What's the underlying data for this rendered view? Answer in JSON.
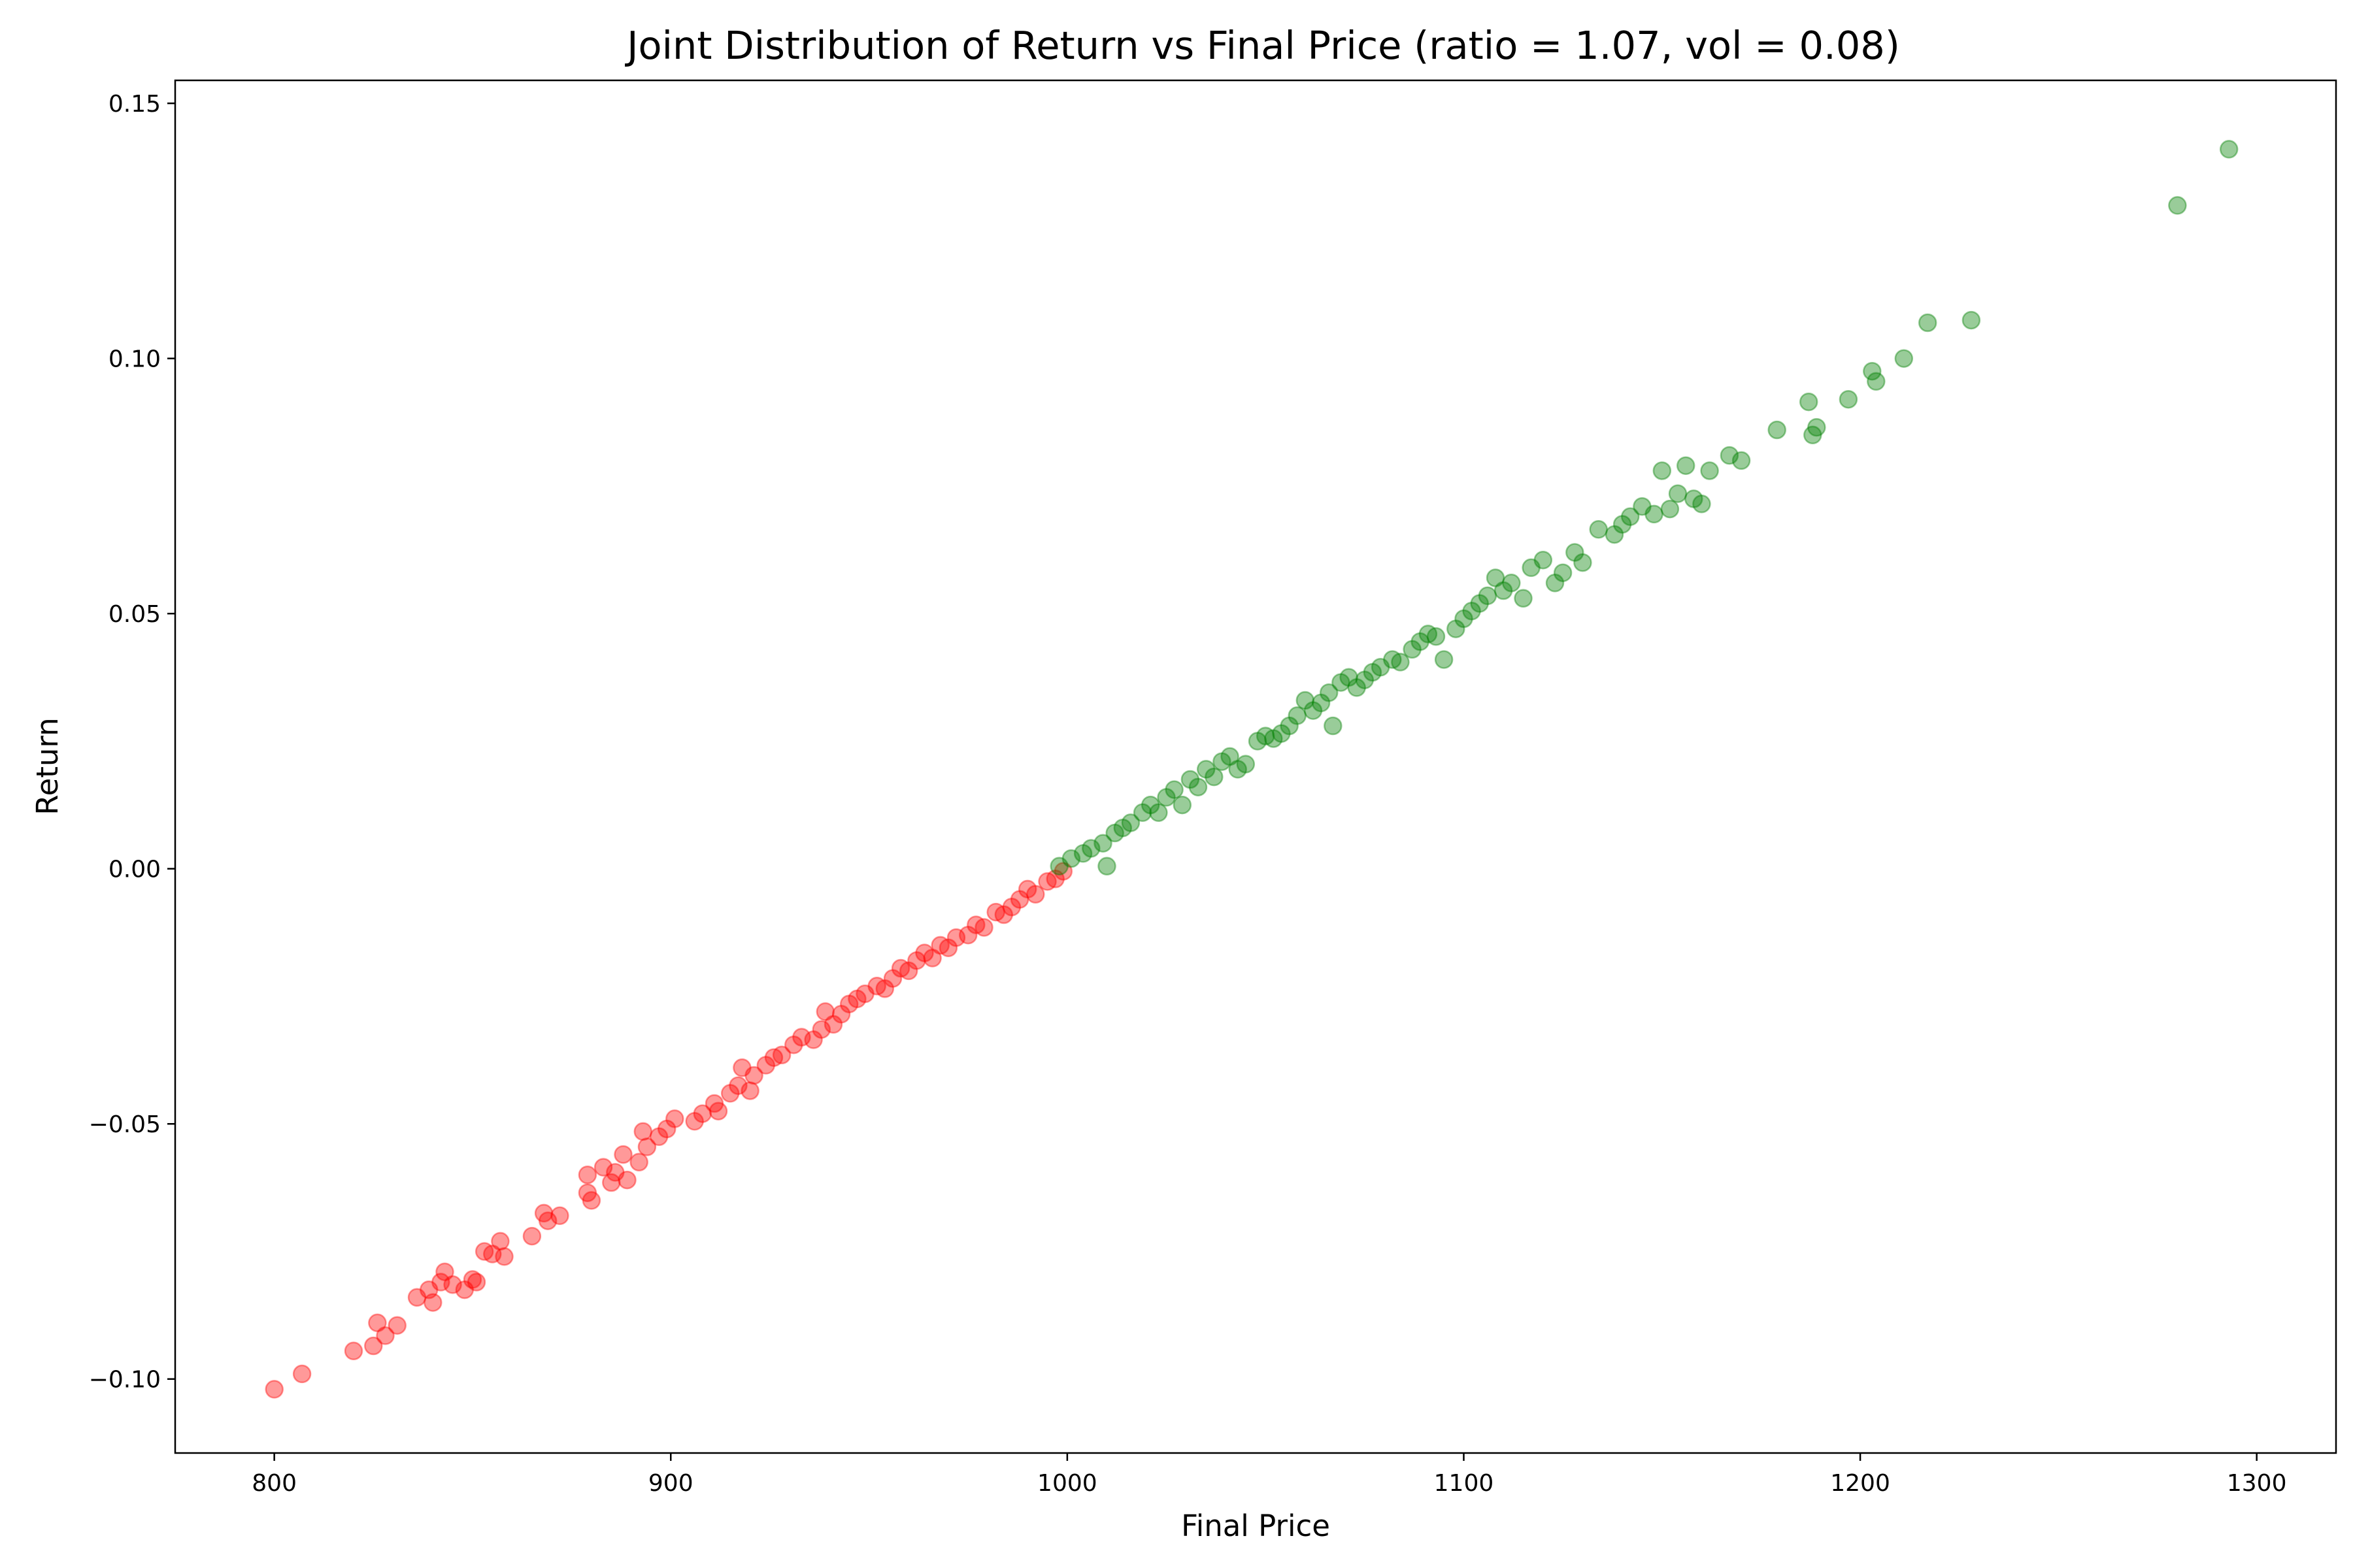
{
  "chart_data": {
    "type": "scatter",
    "title": "Joint Distribution of Return vs Final Price (ratio = 1.07, vol = 0.08)",
    "xlabel": "Final Price",
    "ylabel": "Return",
    "xlim": [
      775,
      1320
    ],
    "ylim": [
      -0.1145,
      0.1545
    ],
    "xticks": [
      800,
      900,
      1000,
      1100,
      1200,
      1300
    ],
    "xtick_labels": [
      "800",
      "900",
      "1000",
      "1100",
      "1200",
      "1300"
    ],
    "yticks": [
      -0.1,
      -0.05,
      0.0,
      0.05,
      0.1,
      0.15
    ],
    "ytick_labels": [
      "−0.10",
      "−0.05",
      "0.00",
      "0.05",
      "0.10",
      "0.15"
    ],
    "grid": false,
    "legend": "none",
    "marker_alpha": 0.4,
    "series": [
      {
        "color": "#ff0000",
        "x": [
          800,
          807,
          820,
          825,
          826,
          828,
          831,
          836,
          839,
          840,
          842,
          843,
          845,
          848,
          850,
          851,
          853,
          855,
          857,
          858,
          865,
          868,
          869,
          872,
          879,
          879,
          880,
          883,
          885,
          886,
          888,
          889,
          892,
          893,
          894,
          897,
          899,
          901,
          906,
          908,
          911,
          912,
          915,
          917,
          918,
          920,
          921,
          924,
          926,
          928,
          931,
          933,
          936,
          938,
          939,
          941,
          943,
          945,
          947,
          949,
          952,
          954,
          956,
          958,
          960,
          962,
          964,
          966,
          968,
          970,
          972,
          975,
          977,
          979,
          982,
          984,
          986,
          988,
          990,
          992,
          995,
          997,
          999
        ],
        "y": [
          -0.102,
          -0.099,
          -0.0945,
          -0.0935,
          -0.089,
          -0.0915,
          -0.0895,
          -0.084,
          -0.0825,
          -0.085,
          -0.081,
          -0.079,
          -0.0815,
          -0.0825,
          -0.0805,
          -0.081,
          -0.075,
          -0.0755,
          -0.073,
          -0.076,
          -0.072,
          -0.0675,
          -0.069,
          -0.068,
          -0.0635,
          -0.06,
          -0.065,
          -0.0585,
          -0.0615,
          -0.0595,
          -0.056,
          -0.061,
          -0.0575,
          -0.0515,
          -0.0545,
          -0.0525,
          -0.051,
          -0.049,
          -0.0495,
          -0.048,
          -0.046,
          -0.0475,
          -0.044,
          -0.0425,
          -0.039,
          -0.0435,
          -0.0405,
          -0.0385,
          -0.037,
          -0.0365,
          -0.0345,
          -0.033,
          -0.0335,
          -0.0315,
          -0.028,
          -0.0305,
          -0.0285,
          -0.0265,
          -0.0255,
          -0.0245,
          -0.023,
          -0.0235,
          -0.0215,
          -0.0195,
          -0.02,
          -0.018,
          -0.0165,
          -0.0175,
          -0.015,
          -0.0155,
          -0.0135,
          -0.013,
          -0.011,
          -0.0115,
          -0.0085,
          -0.009,
          -0.0075,
          -0.006,
          -0.004,
          -0.005,
          -0.0025,
          -0.002,
          -0.0005
        ]
      },
      {
        "color": "#008000",
        "x": [
          998,
          1001,
          1004,
          1006,
          1009,
          1010,
          1012,
          1014,
          1016,
          1019,
          1021,
          1023,
          1025,
          1027,
          1029,
          1031,
          1033,
          1035,
          1037,
          1039,
          1041,
          1043,
          1045,
          1048,
          1050,
          1052,
          1054,
          1056,
          1058,
          1060,
          1062,
          1064,
          1066,
          1067,
          1069,
          1071,
          1073,
          1075,
          1077,
          1079,
          1082,
          1084,
          1087,
          1089,
          1091,
          1093,
          1095,
          1098,
          1100,
          1102,
          1104,
          1106,
          1108,
          1110,
          1112,
          1115,
          1117,
          1120,
          1123,
          1125,
          1128,
          1130,
          1134,
          1138,
          1140,
          1142,
          1145,
          1148,
          1150,
          1152,
          1154,
          1156,
          1158,
          1160,
          1162,
          1167,
          1170,
          1179,
          1187,
          1188,
          1189,
          1197,
          1203,
          1204,
          1211,
          1217,
          1228,
          1280,
          1293
        ],
        "y": [
          0.0005,
          0.002,
          0.003,
          0.004,
          0.005,
          0.0005,
          0.007,
          0.008,
          0.009,
          0.011,
          0.0125,
          0.011,
          0.014,
          0.0155,
          0.0125,
          0.0175,
          0.016,
          0.0195,
          0.018,
          0.021,
          0.022,
          0.0195,
          0.0205,
          0.025,
          0.026,
          0.0255,
          0.0265,
          0.028,
          0.03,
          0.033,
          0.031,
          0.0325,
          0.0345,
          0.028,
          0.0365,
          0.0375,
          0.0355,
          0.037,
          0.0385,
          0.0395,
          0.041,
          0.0405,
          0.043,
          0.0445,
          0.046,
          0.0455,
          0.041,
          0.047,
          0.049,
          0.0505,
          0.052,
          0.0535,
          0.057,
          0.0545,
          0.056,
          0.053,
          0.059,
          0.0605,
          0.056,
          0.058,
          0.062,
          0.06,
          0.0665,
          0.0655,
          0.0675,
          0.069,
          0.071,
          0.0695,
          0.078,
          0.0705,
          0.0735,
          0.079,
          0.0725,
          0.0715,
          0.078,
          0.081,
          0.08,
          0.086,
          0.0915,
          0.085,
          0.0865,
          0.092,
          0.0975,
          0.0955,
          0.1,
          0.107,
          0.1075,
          0.13,
          0.141
        ]
      }
    ]
  }
}
